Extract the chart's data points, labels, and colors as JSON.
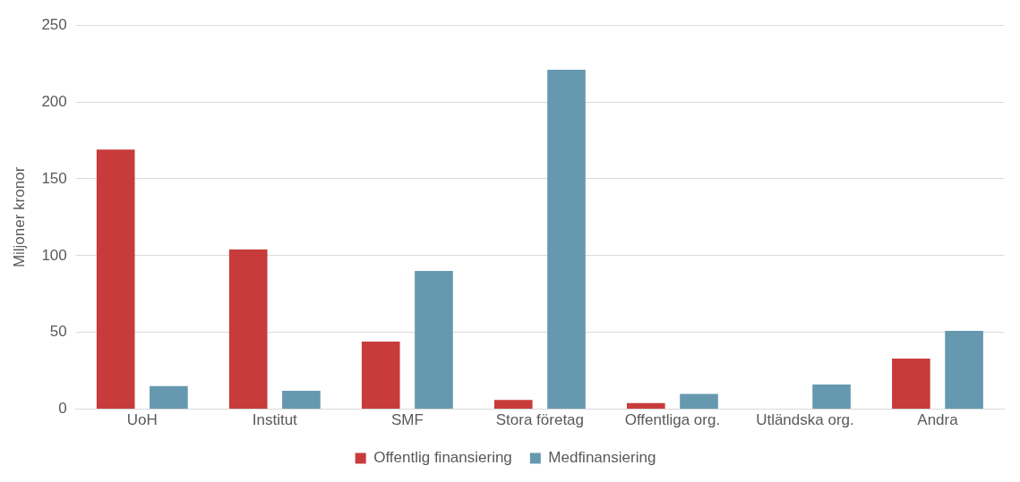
{
  "chart_data": {
    "type": "bar",
    "ylabel": "Miljoner kronor",
    "categories": [
      "UoH",
      "Institut",
      "SMF",
      "Stora företag",
      "Offentliga org.",
      "Utländska org.",
      "Andra"
    ],
    "series": [
      {
        "name": "Offentlig finansiering",
        "color": "#c83b3b",
        "values": [
          169,
          104,
          44,
          6,
          4,
          0,
          33
        ]
      },
      {
        "name": "Medfinansiering",
        "color": "#6699b0",
        "values": [
          15,
          12,
          90,
          221,
          10,
          16,
          51
        ]
      }
    ],
    "ylim": [
      0,
      250
    ],
    "yticks": [
      0,
      50,
      100,
      150,
      200,
      250
    ],
    "grid": "y",
    "legend": "bottom"
  }
}
